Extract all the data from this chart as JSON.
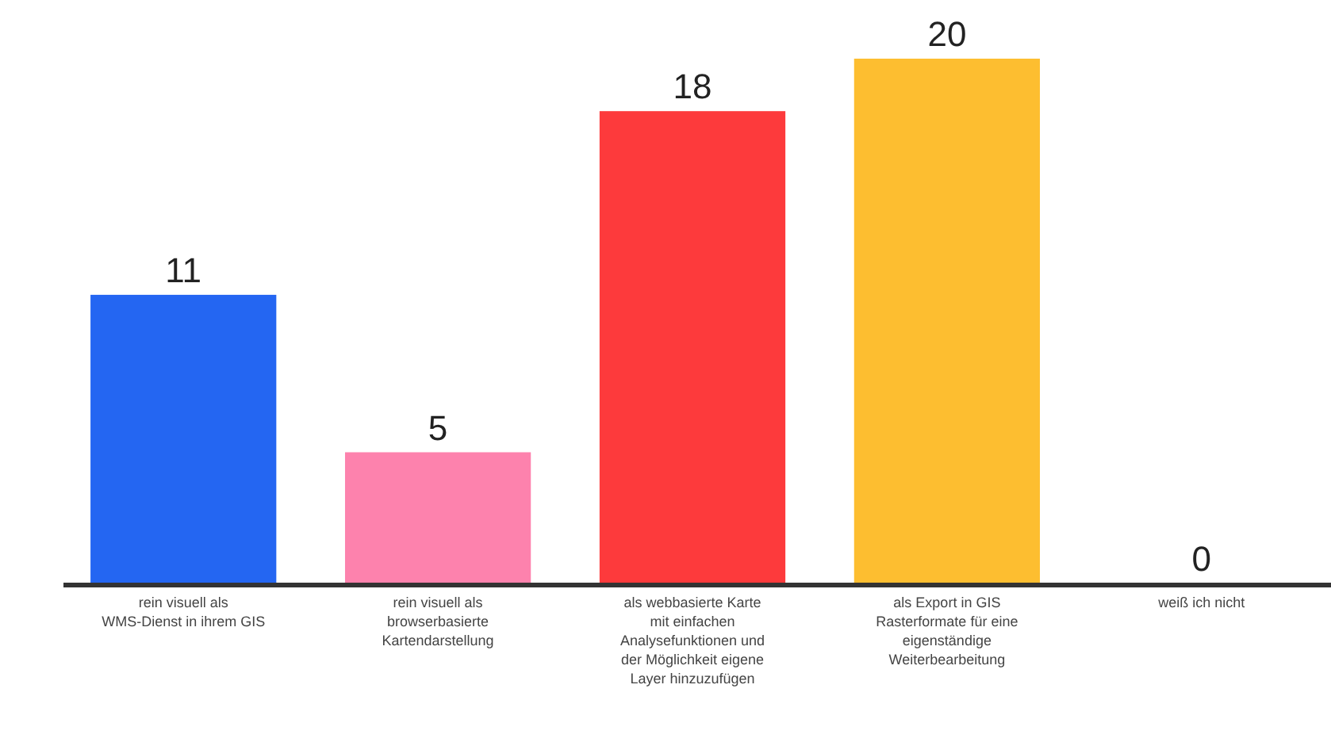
{
  "chart_data": {
    "type": "bar",
    "categories": [
      "rein visuell als WMS-Dienst in ihrem GIS",
      "rein visuell als browserbasierte Kartendarstellung",
      "als webbasierte Karte mit einfachen Analysefunktionen und der Möglichkeit eigene Layer hinzuzufügen",
      "als Export in GIS Rasterformate für eine eigenständige Weiterbearbeitung",
      "weiß ich nicht"
    ],
    "values": [
      11,
      5,
      18,
      20,
      0
    ],
    "colors": [
      "#2466f2",
      "#fd82ad",
      "#fd3a3c",
      "#fdbe30",
      "#888888"
    ],
    "data_labels": true
  }
}
